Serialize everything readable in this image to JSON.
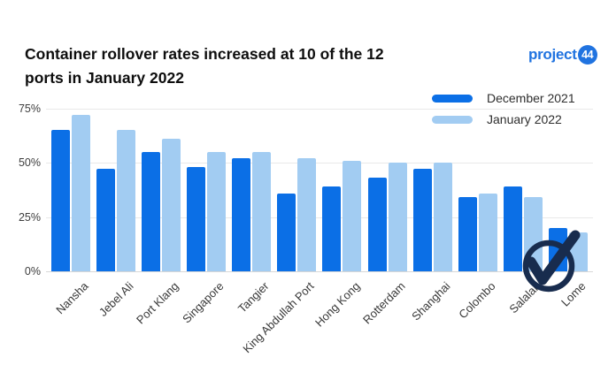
{
  "header": {
    "title_line1": "Container rollover rates increased at 10 of the 12",
    "title_line2": "ports in January 2022"
  },
  "logo": {
    "text": "project",
    "badge": "44",
    "color": "#2073e0"
  },
  "legend": [
    {
      "label": "December 2021",
      "color": "#0b6fe6"
    },
    {
      "label": "January 2022",
      "color": "#a2ccf2"
    }
  ],
  "chart_data": {
    "type": "bar",
    "categories": [
      "Nansha",
      "Jebel Ali",
      "Port Klang",
      "Singapore",
      "Tangier",
      "King Abdullah Port",
      "Hong Kong",
      "Rotterdam",
      "Shanghai",
      "Colombo",
      "Salalah",
      "Lome"
    ],
    "series": [
      {
        "name": "December 2021",
        "color": "#0b6fe6",
        "values": [
          65,
          47,
          55,
          48,
          52,
          36,
          39,
          43,
          47,
          34,
          39,
          20
        ]
      },
      {
        "name": "January 2022",
        "color": "#a2ccf2",
        "values": [
          72,
          65,
          61,
          55,
          55,
          52,
          51,
          50,
          50,
          36,
          34,
          18
        ]
      }
    ],
    "title": "Container rollover rates increased at 10 of the 12 ports in January 2022",
    "xlabel": "",
    "ylabel": "",
    "yticks": [
      0,
      25,
      50,
      75
    ],
    "ytick_labels": [
      "0%",
      "25%",
      "50%",
      "75%"
    ],
    "ylim": [
      0,
      75
    ],
    "grid": true,
    "legend_position": "top-right"
  },
  "annotations": {
    "check_icon_color": "#182c4e"
  }
}
